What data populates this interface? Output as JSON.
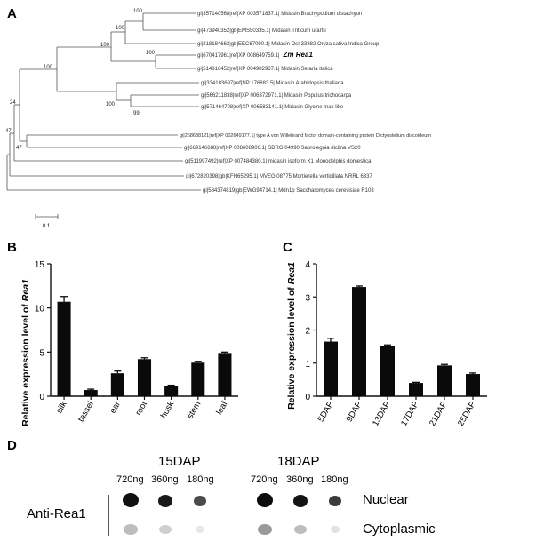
{
  "panels": {
    "a": "A",
    "b": "B",
    "c": "C",
    "d": "D"
  },
  "tree": {
    "scale_label": "0.1",
    "leaves": [
      {
        "text": "gi|357140568|ref|XP 003571837.1| Midasin Brachypodium distachyon",
        "bold": false
      },
      {
        "text": "gi|473940352|gb|EMS50335.1| Midasin Triticum urartu",
        "bold": false
      },
      {
        "text": "gi|218184663|gb|EEC67090.1| Midasin OsI 33882 Oryza sativa Indica Group",
        "bold": false
      },
      {
        "text": "gi|670417961|ref|XP 008649759.1|",
        "bold": false,
        "suffix": "Zm Rea1"
      },
      {
        "text": "gi|514816452|ref|XP 004982967.1| Midasin Setaria italica",
        "bold": false
      },
      {
        "text": "gi|334183697|ref|NP 176883.5| Midasin Arabidopsis thaliana",
        "bold": false
      },
      {
        "text": "gi|566211838|ref|XP 006372971.1| Midasin Populus trichocarpa",
        "bold": false
      },
      {
        "text": "gi|571464708|ref|XP 006583141.1| Midasin Glycine max   like",
        "bold": false
      },
      {
        "text": "gi|268638121|ref|XP 002649177.1| type A von Willebrand factor domain-containing protein Dictyostelium discoideum",
        "bold": false
      },
      {
        "text": "gi|669146688|ref|XP 008608906.1| SDRG 04990 Saprolegnia diclina VS20",
        "bold": false
      },
      {
        "text": "gi|511997492|ref|XP 007484380.1| midasin isoform X1 Monodelphis domestica",
        "bold": false
      },
      {
        "text": "gi|672820398|gb|KFH65295.1| MVEG 08775 Mortierella verticillata NRRL 6337",
        "bold": false
      },
      {
        "text": "gi|584374819|gb|EWG94714.1| Mdn1p Saccharomyces cerevisiae R103",
        "bold": false
      }
    ],
    "bootstrap": [
      "100",
      "100",
      "100",
      "100",
      "100",
      "99",
      "100",
      "24",
      "47",
      "47"
    ]
  },
  "chart_data": [
    {
      "type": "bar",
      "title": "",
      "xlabel": "",
      "ylabel": "Relative expression level of Rea1",
      "ylabel_prefix": "Relative expression level of",
      "ylabel_gene": "Rea1",
      "categories": [
        "silk",
        "tassel",
        "ear",
        "root",
        "husk",
        "stem",
        "leaf"
      ],
      "values": [
        10.7,
        0.7,
        2.6,
        4.2,
        1.2,
        3.8,
        4.9
      ],
      "errors": [
        0.6,
        0.1,
        0.25,
        0.15,
        0.05,
        0.15,
        0.1
      ],
      "ylim": [
        0,
        15
      ],
      "yticks": [
        "0",
        "5",
        "10",
        "15"
      ],
      "grid": false
    },
    {
      "type": "bar",
      "title": "",
      "xlabel": "",
      "ylabel": "Relative expression level of Rea1",
      "ylabel_prefix": "Relative expression level of",
      "ylabel_gene": "Rea1",
      "categories": [
        "5DAP",
        "9DAP",
        "13DAP",
        "17DAP",
        "21DAP",
        "25DAP"
      ],
      "values": [
        1.65,
        3.3,
        1.52,
        0.4,
        0.93,
        0.67
      ],
      "errors": [
        0.1,
        0.03,
        0.03,
        0.02,
        0.03,
        0.03
      ],
      "ylim": [
        0,
        4
      ],
      "yticks": [
        "0",
        "1",
        "2",
        "3",
        "4"
      ],
      "grid": false
    }
  ],
  "blot": {
    "group1_title": "15DAP",
    "group2_title": "18DAP",
    "group1_amounts": [
      "720ng",
      "360ng",
      "180ng"
    ],
    "group2_amounts": [
      "720ng",
      "360ng",
      "180ng"
    ],
    "row_labels": [
      "Nuclear",
      "Cytoplasmic"
    ],
    "antibody": "Anti-Rea1"
  }
}
